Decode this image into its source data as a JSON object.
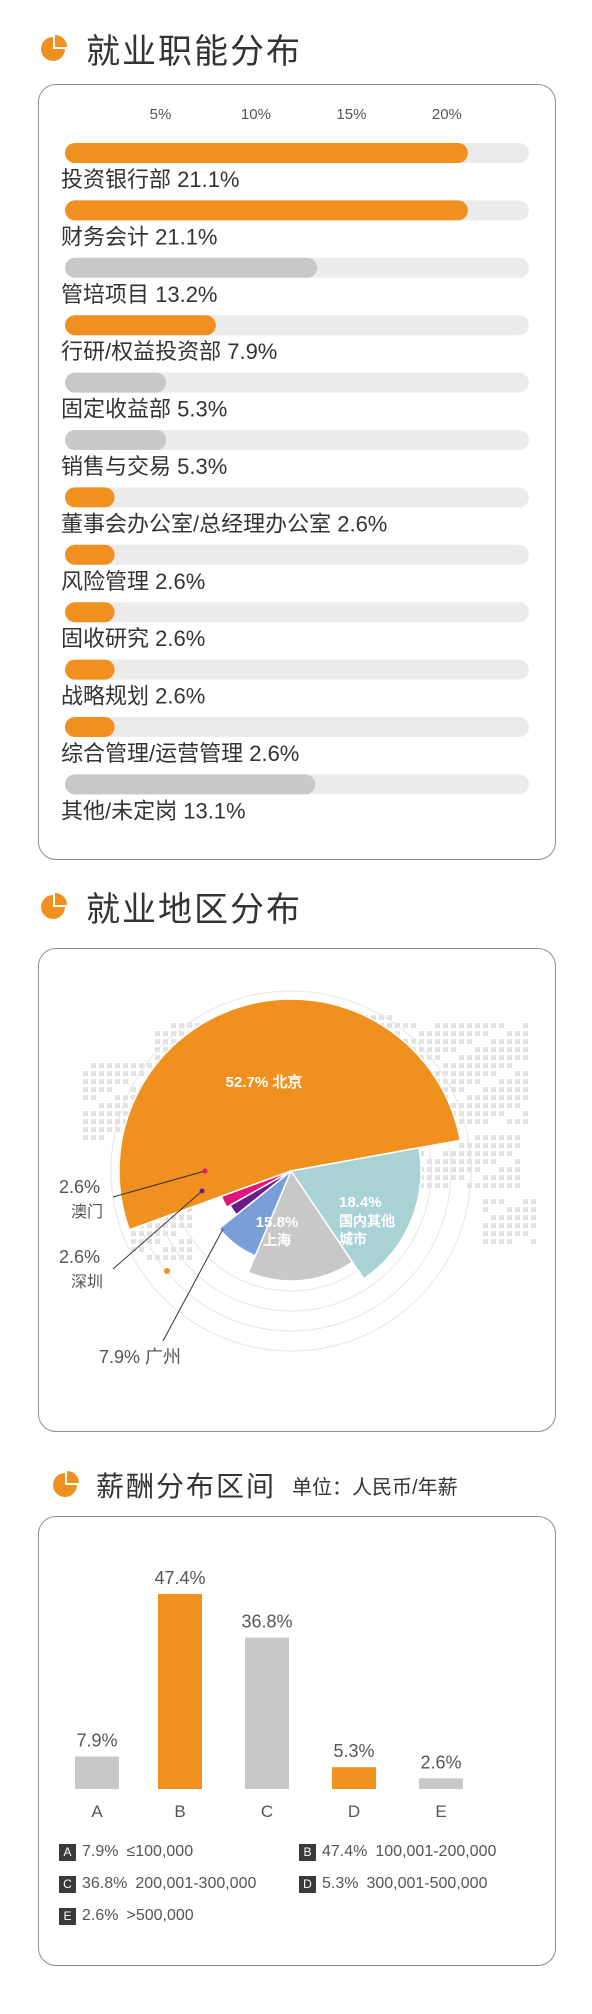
{
  "sections": {
    "jobs_title": "就业职能分布",
    "region_title": "就业地区分布",
    "salary_title": "薪酬分布区间",
    "salary_unit": "单位：人民币/年薪"
  },
  "colors": {
    "accent": "#f0901e",
    "gray": "#c8c8c8",
    "track": "#ebebeb",
    "teal": "#a8d2d4",
    "blue": "#7a9fd8",
    "purple": "#6a1c8a",
    "magenta": "#e0177a",
    "map": "#e2e2e2"
  },
  "icons": [
    "pie-chart-icon"
  ],
  "chart_data": [
    {
      "type": "bar",
      "orientation": "horizontal",
      "ticks": [
        "5%",
        "10%",
        "15%",
        "20%"
      ],
      "xlim": [
        0,
        24.3
      ],
      "categories": [
        "投资银行部 21.1%",
        "财务会计 21.1%",
        "管培项目 13.2%",
        "行研/权益投资部 7.9%",
        "固定收益部 5.3%",
        "销售与交易 5.3%",
        "董事会办公室/总经理办公室 2.6%",
        "风险管理 2.6%",
        "固收研究 2.6%",
        "战略规划 2.6%",
        "综合管理/运营管理 2.6%",
        "其他/未定岗 13.1%"
      ],
      "values": [
        21.1,
        21.1,
        13.2,
        7.9,
        5.3,
        5.3,
        2.6,
        2.6,
        2.6,
        2.6,
        2.6,
        13.1
      ],
      "bar_colors": [
        "accent",
        "accent",
        "gray",
        "accent",
        "gray",
        "gray",
        "accent",
        "accent",
        "accent",
        "accent",
        "accent",
        "gray"
      ]
    },
    {
      "type": "pie",
      "slices": [
        {
          "value": 52.7,
          "pct": "52.7%",
          "label": "北京",
          "color": "accent"
        },
        {
          "value": 18.4,
          "pct": "18.4%",
          "label": "国内其他城市",
          "color": "teal"
        },
        {
          "value": 15.8,
          "pct": "15.8%",
          "label": "上海",
          "color": "gray"
        },
        {
          "value": 7.9,
          "pct": "7.9%",
          "label": "广州",
          "color": "blue"
        },
        {
          "value": 2.6,
          "pct": "2.6%",
          "label": "深圳",
          "color": "purple"
        },
        {
          "value": 2.6,
          "pct": "2.6%",
          "label": "澳门",
          "color": "magenta"
        }
      ]
    },
    {
      "type": "bar",
      "categories": [
        "A",
        "B",
        "C",
        "D",
        "E"
      ],
      "values": [
        7.9,
        47.4,
        36.8,
        5.3,
        2.6
      ],
      "value_labels": [
        "7.9%",
        "47.4%",
        "36.8%",
        "5.3%",
        "2.6%"
      ],
      "bar_colors": [
        "gray",
        "accent",
        "gray",
        "accent",
        "gray"
      ],
      "ylim": [
        0,
        47.4
      ],
      "legend": [
        {
          "key": "A",
          "pct": "7.9%",
          "range": "≤100,000"
        },
        {
          "key": "B",
          "pct": "47.4%",
          "range": "100,001-200,000"
        },
        {
          "key": "C",
          "pct": "36.8%",
          "range": "200,001-300,000"
        },
        {
          "key": "D",
          "pct": "5.3%",
          "range": "300,001-500,000"
        },
        {
          "key": "E",
          "pct": "2.6%",
          "range": ">500,000"
        }
      ]
    }
  ]
}
